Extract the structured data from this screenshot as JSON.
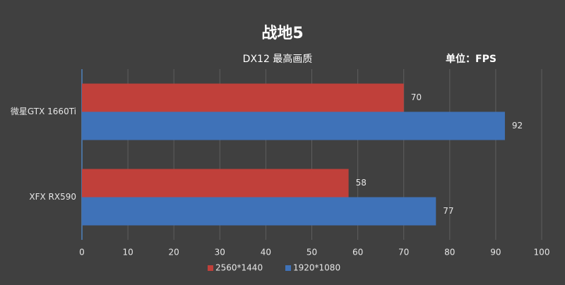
{
  "chart_data": {
    "type": "bar",
    "title": "战地5",
    "subtitle": "DX12 最高画质",
    "unit_label": "单位：FPS",
    "categories": [
      "微星GTX 1660Ti",
      "XFX RX590"
    ],
    "series": [
      {
        "name": "2560*1440",
        "color": "#c0403a",
        "values": [
          70,
          58
        ]
      },
      {
        "name": "1920*1080",
        "color": "#3f72b8",
        "values": [
          92,
          77
        ]
      }
    ],
    "xlim": [
      0,
      100
    ],
    "xticks": [
      0,
      10,
      20,
      30,
      40,
      50,
      60,
      70,
      80,
      90,
      100
    ],
    "grid": true
  }
}
